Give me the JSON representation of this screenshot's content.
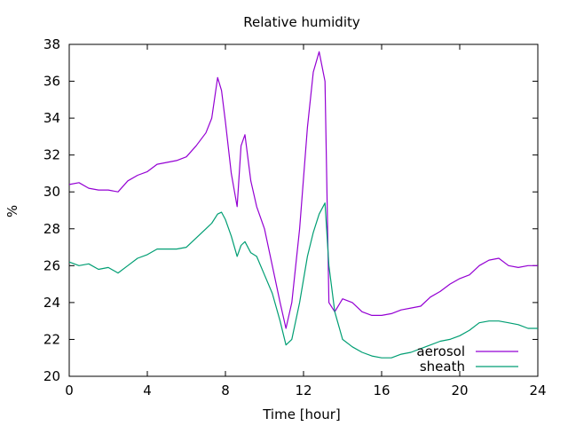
{
  "chart_data": {
    "type": "line",
    "title": "Relative humidity",
    "xlabel": "Time [hour]",
    "ylabel": "%",
    "xlim": [
      0,
      24
    ],
    "ylim": [
      20,
      38
    ],
    "xticks": [
      0,
      4,
      8,
      12,
      16,
      20,
      24
    ],
    "yticks": [
      20,
      22,
      24,
      26,
      28,
      30,
      32,
      34,
      36,
      38
    ],
    "grid": false,
    "legend_position": "bottom-right",
    "series": [
      {
        "name": "aerosol",
        "color": "#9400d3",
        "x": [
          0,
          0.5,
          1,
          1.5,
          2,
          2.5,
          3,
          3.5,
          4,
          4.5,
          5,
          5.5,
          6,
          6.5,
          7,
          7.3,
          7.6,
          7.8,
          8,
          8.3,
          8.6,
          8.8,
          9,
          9.3,
          9.6,
          10,
          10.4,
          10.8,
          11.1,
          11.4,
          11.8,
          12.2,
          12.5,
          12.8,
          13.1,
          13.3,
          13.6,
          14,
          14.5,
          15,
          15.5,
          16,
          16.5,
          17,
          17.5,
          18,
          18.5,
          19,
          19.5,
          20,
          20.5,
          21,
          21.5,
          22,
          22.5,
          23,
          23.5,
          24
        ],
        "y": [
          30.4,
          30.5,
          30.2,
          30.1,
          30.1,
          30.0,
          30.6,
          30.9,
          31.1,
          31.5,
          31.6,
          31.7,
          31.9,
          32.5,
          33.2,
          34.0,
          36.2,
          35.5,
          33.8,
          31.0,
          29.2,
          32.5,
          33.1,
          30.6,
          29.2,
          28.0,
          26.0,
          24.0,
          22.6,
          24.0,
          28.0,
          33.5,
          36.5,
          37.6,
          36.0,
          24.0,
          23.5,
          24.2,
          24.0,
          23.5,
          23.3,
          23.3,
          23.4,
          23.6,
          23.7,
          23.8,
          24.3,
          24.6,
          25.0,
          25.3,
          25.5,
          26.0,
          26.3,
          26.4,
          26.0,
          25.9,
          26.0,
          26.0
        ]
      },
      {
        "name": "sheath",
        "color": "#009e73",
        "x": [
          0,
          0.5,
          1,
          1.5,
          2,
          2.5,
          3,
          3.5,
          4,
          4.5,
          5,
          5.5,
          6,
          6.5,
          7,
          7.3,
          7.6,
          7.8,
          8,
          8.3,
          8.6,
          8.8,
          9,
          9.3,
          9.6,
          10,
          10.4,
          10.8,
          11.1,
          11.4,
          11.8,
          12.2,
          12.5,
          12.8,
          13.1,
          13.3,
          13.6,
          14,
          14.5,
          15,
          15.5,
          16,
          16.5,
          17,
          17.5,
          18,
          18.5,
          19,
          19.5,
          20,
          20.5,
          21,
          21.5,
          22,
          22.5,
          23,
          23.5,
          24
        ],
        "y": [
          26.2,
          26.0,
          26.1,
          25.8,
          25.9,
          25.6,
          26.0,
          26.4,
          26.6,
          26.9,
          26.9,
          26.9,
          27.0,
          27.5,
          28.0,
          28.3,
          28.8,
          28.9,
          28.5,
          27.6,
          26.5,
          27.1,
          27.3,
          26.7,
          26.5,
          25.5,
          24.5,
          23.0,
          21.7,
          22.0,
          24.0,
          26.5,
          27.8,
          28.8,
          29.4,
          26.0,
          23.5,
          22.0,
          21.6,
          21.3,
          21.1,
          21.0,
          21.0,
          21.2,
          21.3,
          21.5,
          21.7,
          21.9,
          22.0,
          22.2,
          22.5,
          22.9,
          23.0,
          23.0,
          22.9,
          22.8,
          22.6,
          22.6
        ]
      }
    ]
  }
}
